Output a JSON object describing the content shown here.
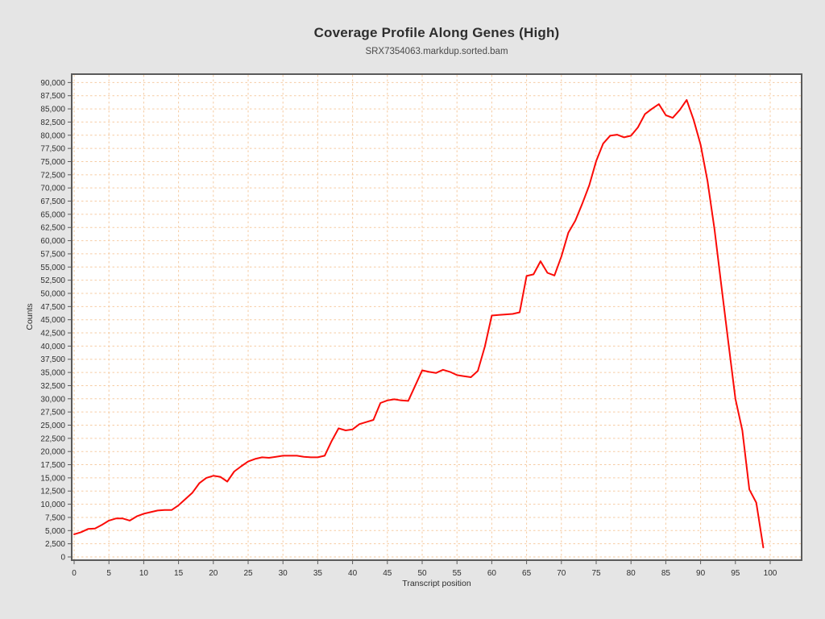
{
  "page": {
    "background_color": "#e5e5e5",
    "plot_background_color": "#ffffff",
    "axis_border_color": "#5a5a5a",
    "tick_label_color": "#2f2f2f"
  },
  "header": {
    "title": "Coverage Profile Along Genes (High)",
    "subtitle": "SRX7354063.markdup.sorted.bam"
  },
  "chart_data": {
    "type": "line",
    "title": "Coverage Profile Along Genes (High)",
    "subtitle": "SRX7354063.markdup.sorted.bam",
    "xlabel": "Transcript position",
    "ylabel": "Counts",
    "grid": true,
    "grid_color": "#f6cba2",
    "line_color": "#fb0b07",
    "legend": "none",
    "xlim": [
      0,
      100
    ],
    "ylim": [
      0,
      90000
    ],
    "x_ticks": [
      0,
      5,
      10,
      15,
      20,
      25,
      30,
      35,
      40,
      45,
      50,
      55,
      60,
      65,
      70,
      75,
      80,
      85,
      90,
      95,
      100
    ],
    "y_ticks": [
      0,
      2500,
      5000,
      7500,
      10000,
      12500,
      15000,
      17500,
      20000,
      22500,
      25000,
      27500,
      30000,
      32500,
      35000,
      37500,
      40000,
      42500,
      45000,
      47500,
      50000,
      52500,
      55000,
      57500,
      60000,
      62500,
      65000,
      67500,
      70000,
      72500,
      75000,
      77500,
      80000,
      82500,
      85000,
      87500,
      90000
    ],
    "series": [
      {
        "name": "coverage",
        "x_start": 0,
        "x_step": 1,
        "values": [
          4300,
          4700,
          5300,
          5400,
          6100,
          6900,
          7300,
          7300,
          6900,
          7700,
          8200,
          8500,
          8800,
          8900,
          8900,
          9800,
          11000,
          12200,
          14000,
          15000,
          15400,
          15200,
          14300,
          16200,
          17200,
          18100,
          18600,
          18900,
          18800,
          19000,
          19200,
          19200,
          19200,
          19000,
          18900,
          18900,
          19200,
          22000,
          24400,
          24000,
          24200,
          25200,
          25600,
          26000,
          29200,
          29700,
          29900,
          29700,
          29600,
          32500,
          35400,
          35100,
          34900,
          35500,
          35100,
          34500,
          34300,
          34100,
          35300,
          39900,
          45800,
          45900,
          46000,
          46100,
          46400,
          53300,
          53600,
          56100,
          53900,
          53400,
          57000,
          61500,
          63800,
          67000,
          70500,
          75100,
          78400,
          79900,
          80100,
          79600,
          79900,
          81500,
          84000,
          85000,
          85900,
          83800,
          83300,
          84800,
          86700,
          82900,
          78200,
          71300,
          62100,
          51300,
          40500,
          30000,
          24000,
          12800,
          10300,
          1800
        ]
      }
    ]
  }
}
